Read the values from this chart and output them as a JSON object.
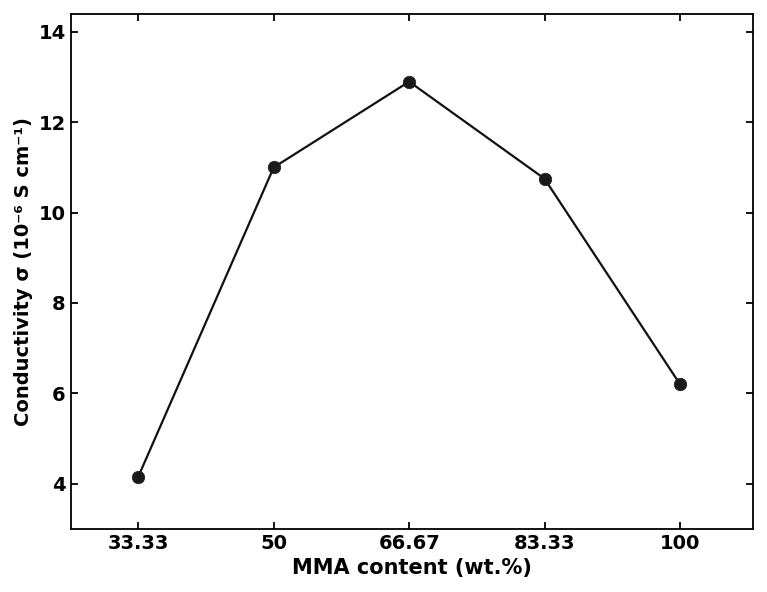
{
  "x": [
    33.33,
    50,
    66.67,
    83.33,
    100
  ],
  "y": [
    4.15,
    11.0,
    12.9,
    10.75,
    6.2
  ],
  "x_ticks": [
    33.33,
    50,
    66.67,
    83.33,
    100
  ],
  "x_tick_labels": [
    "33.33",
    "50",
    "66.67",
    "83.33",
    "100"
  ],
  "ylim": [
    3.0,
    14.4
  ],
  "yticks": [
    4,
    6,
    8,
    10,
    12,
    14
  ],
  "xlabel": "MMA content (wt.%)",
  "ylabel": "Conductivity σ (10⁻⁶ S cm⁻¹)",
  "line_color": "#111111",
  "marker_color": "#1a1a1a",
  "marker_size": 9,
  "line_width": 1.6,
  "background_color": "#ffffff",
  "xlabel_fontsize": 15,
  "ylabel_fontsize": 14,
  "tick_fontsize": 14,
  "xlabel_fontweight": "bold",
  "ylabel_fontweight": "bold"
}
